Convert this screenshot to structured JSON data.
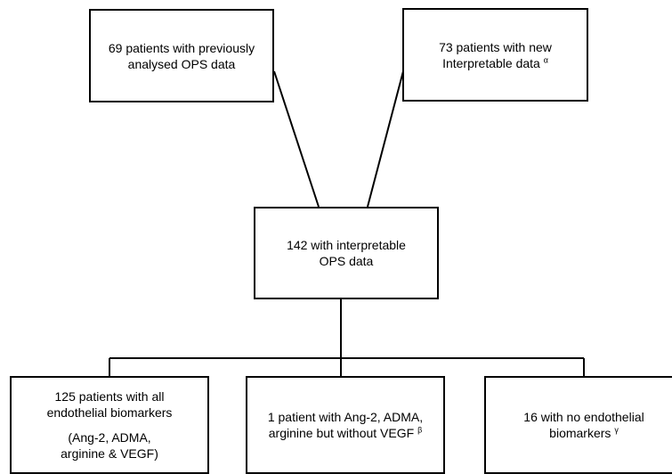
{
  "nodes": {
    "top_left": {
      "lines": [
        "69 patients with previously",
        "analysed OPS data"
      ]
    },
    "top_right": {
      "lines": [
        "73 patients with new",
        "Interpretable data"
      ],
      "mark": "α"
    },
    "middle": {
      "lines": [
        "142 with interpretable",
        "OPS data"
      ]
    },
    "bottom_left": {
      "lines": [
        "125 patients with all",
        "endothelial biomarkers"
      ],
      "sub_lines": [
        "(Ang-2, ADMA,",
        "arginine & VEGF)"
      ]
    },
    "bottom_mid": {
      "lines": [
        "1 patient with Ang-2, ADMA,",
        "arginine but without VEGF"
      ],
      "mark": "β"
    },
    "bottom_right": {
      "lines": [
        "16 with no endothelial",
        "biomarkers"
      ],
      "mark": "γ"
    }
  },
  "colors": {
    "stroke": "#000000",
    "fill": "#ffffff"
  }
}
